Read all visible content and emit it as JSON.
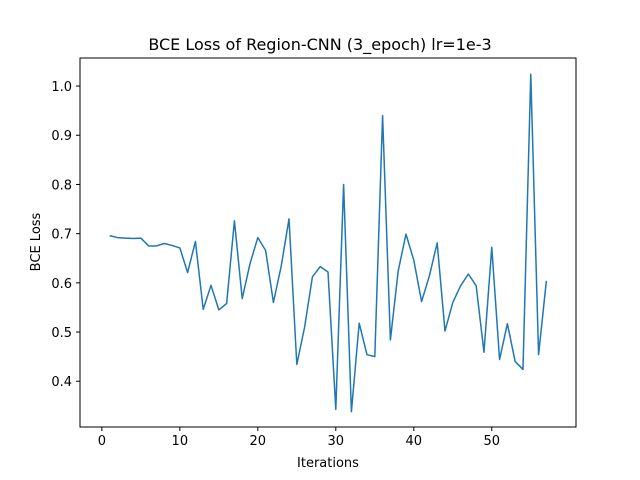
{
  "chart_data": {
    "type": "line",
    "title": "BCE Loss of Region-CNN (3_epoch) lr=1e-3",
    "xlabel": "Iterations",
    "ylabel": "BCE Loss",
    "xlim": [
      -2.8,
      60.8
    ],
    "ylim": [
      0.307,
      1.057
    ],
    "xticks": [
      "0",
      "10",
      "20",
      "30",
      "40",
      "50"
    ],
    "yticks": [
      "0.4",
      "0.5",
      "0.6",
      "0.7",
      "0.8",
      "0.9",
      "1.0"
    ],
    "grid": false,
    "color": "#1f77b4",
    "series": [
      {
        "x": [
          1,
          2,
          3,
          4,
          5,
          6,
          7,
          8,
          9,
          10,
          11,
          12,
          13,
          14,
          15,
          16,
          17,
          18,
          19,
          20,
          21,
          22,
          23,
          24,
          25,
          26,
          27,
          28,
          29,
          30,
          31,
          32,
          33,
          34,
          35,
          36,
          37,
          38,
          39,
          40,
          41,
          42,
          43,
          44,
          45,
          46,
          47,
          48,
          49,
          50,
          51,
          52,
          53,
          54,
          55,
          56,
          57
        ],
        "y": [
          0.696,
          0.692,
          0.691,
          0.69,
          0.691,
          0.675,
          0.675,
          0.68,
          0.676,
          0.671,
          0.621,
          0.684,
          0.546,
          0.595,
          0.545,
          0.558,
          0.726,
          0.568,
          0.639,
          0.692,
          0.666,
          0.56,
          0.634,
          0.73,
          0.434,
          0.51,
          0.612,
          0.633,
          0.622,
          0.343,
          0.8,
          0.338,
          0.518,
          0.454,
          0.45,
          0.94,
          0.484,
          0.624,
          0.699,
          0.646,
          0.562,
          0.614,
          0.681,
          0.502,
          0.56,
          0.594,
          0.618,
          0.594,
          0.459,
          0.672,
          0.444,
          0.517,
          0.44,
          0.424,
          1.024,
          0.454,
          0.604
        ]
      }
    ]
  }
}
